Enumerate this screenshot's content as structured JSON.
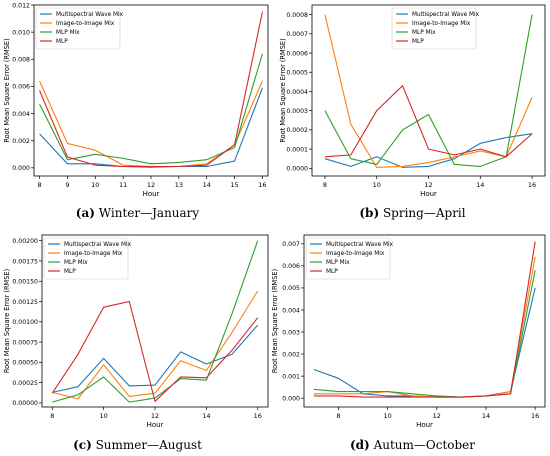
{
  "chart_data": [
    {
      "type": "line",
      "caption_letter": "(a)",
      "caption_text": "Winter—January",
      "xlabel": "Hour",
      "ylabel": "Root Mean Square Error (RMSE)",
      "xlim": [
        7.8,
        16.2
      ],
      "ylim": [
        -0.0006,
        0.012
      ],
      "xticks": [
        8,
        9,
        10,
        11,
        12,
        13,
        14,
        15,
        16
      ],
      "xtick_labels": [
        "8",
        "9",
        "10",
        "11",
        "12",
        "13",
        "14",
        "15",
        "16"
      ],
      "yticks": [
        0,
        0.002,
        0.004,
        0.006,
        0.008,
        0.01,
        0.012
      ],
      "ytick_labels": [
        "0.000",
        "0.002",
        "0.004",
        "0.006",
        "0.008",
        "0.010",
        "0.012"
      ],
      "legend": "top-left",
      "series": [
        {
          "name": "Multispectral Wave Mix",
          "color": "#1f77b4",
          "x": [
            8,
            9,
            10,
            11,
            12,
            13,
            14,
            15,
            16
          ],
          "values": [
            0.0025,
            0.0003,
            0.0003,
            0.0001,
            5e-05,
            0.0001,
            0.0001,
            0.0005,
            0.0059
          ]
        },
        {
          "name": "Image-to-Image Mix",
          "color": "#ff7f0e",
          "x": [
            8,
            9,
            10,
            11,
            12,
            13,
            14,
            15,
            16
          ],
          "values": [
            0.0064,
            0.0018,
            0.0013,
            0.0002,
            0.0001,
            0.0001,
            0.0003,
            0.0017,
            0.0064
          ]
        },
        {
          "name": "MLP Mix",
          "color": "#2ca02c",
          "x": [
            8,
            9,
            10,
            11,
            12,
            13,
            14,
            15,
            16
          ],
          "values": [
            0.0047,
            0.0006,
            0.001,
            0.0007,
            0.0003,
            0.0004,
            0.0006,
            0.0015,
            0.0084
          ]
        },
        {
          "name": "MLP",
          "color": "#d62728",
          "x": [
            8,
            9,
            10,
            11,
            12,
            13,
            14,
            15,
            16
          ],
          "values": [
            0.0057,
            0.0008,
            0.0002,
            0.0001,
            0.0001,
            0.0001,
            0.0002,
            0.0017,
            0.0115
          ]
        }
      ]
    },
    {
      "type": "line",
      "caption_letter": "(b)",
      "caption_text": "Spring—April",
      "xlabel": "Hour",
      "ylabel": "Root Mean Square Error (RMSE)",
      "xlim": [
        7.5,
        16.5
      ],
      "ylim": [
        -4e-05,
        0.00085
      ],
      "xticks": [
        8,
        10,
        12,
        14,
        16
      ],
      "xtick_labels": [
        "8",
        "10",
        "12",
        "14",
        "16"
      ],
      "yticks": [
        0,
        0.0001,
        0.0002,
        0.0003,
        0.0004,
        0.0005,
        0.0006,
        0.0007,
        0.0008
      ],
      "ytick_labels": [
        "0.0000",
        "0.0001",
        "0.0002",
        "0.0003",
        "0.0004",
        "0.0005",
        "0.0006",
        "0.0007",
        "0.0008"
      ],
      "legend": "top-right",
      "series": [
        {
          "name": "Multispectral Wave Mix",
          "color": "#1f77b4",
          "x": [
            8,
            9,
            10,
            11,
            12,
            13,
            14,
            15,
            16
          ],
          "values": [
            5e-05,
            1e-05,
            6e-05,
            5e-06,
            1e-05,
            5e-05,
            0.00013,
            0.00016,
            0.00018
          ]
        },
        {
          "name": "Image-to-Image Mix",
          "color": "#ff7f0e",
          "x": [
            8,
            9,
            10,
            11,
            12,
            13,
            14,
            15,
            16
          ],
          "values": [
            0.0008,
            0.00023,
            5e-06,
            1e-05,
            3e-05,
            6e-05,
            9e-05,
            6e-05,
            0.00037
          ]
        },
        {
          "name": "MLP Mix",
          "color": "#2ca02c",
          "x": [
            8,
            9,
            10,
            11,
            12,
            13,
            14,
            15,
            16
          ],
          "values": [
            0.0003,
            5e-05,
            2e-05,
            0.0002,
            0.00028,
            2e-05,
            1e-05,
            6e-05,
            0.0008
          ]
        },
        {
          "name": "MLP",
          "color": "#d62728",
          "x": [
            8,
            9,
            10,
            11,
            12,
            13,
            14,
            15,
            16
          ],
          "values": [
            6e-05,
            7e-05,
            0.0003,
            0.00043,
            0.0001,
            7e-05,
            0.0001,
            6e-05,
            0.00018
          ]
        }
      ]
    },
    {
      "type": "line",
      "caption_letter": "(c)",
      "caption_text": "Summer—August",
      "xlabel": "Hour",
      "ylabel": "Root Mean Square Error (RMSE)",
      "xlim": [
        7.6,
        16.4
      ],
      "ylim": [
        -5e-05,
        0.00207
      ],
      "xticks": [
        8,
        10,
        12,
        14,
        16
      ],
      "xtick_labels": [
        "8",
        "10",
        "12",
        "14",
        "16"
      ],
      "yticks": [
        0,
        0.00025,
        0.0005,
        0.00075,
        0.001,
        0.00125,
        0.0015,
        0.00175,
        0.002
      ],
      "ytick_labels": [
        "0.00000",
        "0.00025",
        "0.00050",
        "0.00075",
        "0.00100",
        "0.00125",
        "0.00150",
        "0.00175",
        "0.00200"
      ],
      "legend": "top-left",
      "series": [
        {
          "name": "Multispectral Wave Mix",
          "color": "#1f77b4",
          "x": [
            8,
            9,
            10,
            11,
            12,
            13,
            14,
            15,
            16
          ],
          "values": [
            0.00013,
            0.0002,
            0.00055,
            0.00021,
            0.00022,
            0.00063,
            0.00048,
            0.0006,
            0.00096
          ]
        },
        {
          "name": "Image-to-Image Mix",
          "color": "#ff7f0e",
          "x": [
            8,
            9,
            10,
            11,
            12,
            13,
            14,
            15,
            16
          ],
          "values": [
            0.00013,
            5e-05,
            0.00047,
            8e-05,
            0.00012,
            0.00052,
            0.0004,
            0.00087,
            0.00138
          ]
        },
        {
          "name": "MLP Mix",
          "color": "#2ca02c",
          "x": [
            8,
            9,
            10,
            11,
            12,
            13,
            14,
            15,
            16
          ],
          "values": [
            1e-05,
            0.0001,
            0.00032,
            1e-05,
            6e-05,
            0.0003,
            0.00028,
            0.0011,
            0.002
          ]
        },
        {
          "name": "MLP",
          "color": "#d62728",
          "x": [
            8,
            9,
            10,
            11,
            12,
            13,
            14,
            15,
            16
          ],
          "values": [
            0.00012,
            0.0006,
            0.00118,
            0.00125,
            2e-05,
            0.00032,
            0.00031,
            0.00065,
            0.00105
          ]
        }
      ]
    },
    {
      "type": "line",
      "caption_letter": "(d)",
      "caption_text": "Autum—October",
      "xlabel": "Hour",
      "ylabel": "Root Mean Square Error (RMSE)",
      "xlim": [
        6.6,
        16.4
      ],
      "ylim": [
        -0.0004,
        0.0074
      ],
      "xticks": [
        8,
        10,
        12,
        14,
        16
      ],
      "xtick_labels": [
        "8",
        "10",
        "12",
        "14",
        "16"
      ],
      "yticks": [
        0,
        0.001,
        0.002,
        0.003,
        0.004,
        0.005,
        0.006,
        0.007
      ],
      "ytick_labels": [
        "0.000",
        "0.001",
        "0.002",
        "0.003",
        "0.004",
        "0.005",
        "0.006",
        "0.007"
      ],
      "legend": "top-left",
      "series": [
        {
          "name": "Multispectral Wave Mix",
          "color": "#1f77b4",
          "x": [
            7,
            8,
            9,
            10,
            11,
            12,
            13,
            14,
            15,
            16
          ],
          "values": [
            0.0013,
            0.0009,
            0.0002,
            0.0001,
            0.0001,
            5e-05,
            5e-05,
            0.0001,
            0.0003,
            0.005
          ]
        },
        {
          "name": "Image-to-Image Mix",
          "color": "#ff7f0e",
          "x": [
            7,
            8,
            9,
            10,
            11,
            12,
            13,
            14,
            15,
            16
          ],
          "values": [
            0.0002,
            0.0002,
            0.0002,
            0.0003,
            0.0001,
            5e-05,
            5e-05,
            0.0001,
            0.0003,
            0.0064
          ]
        },
        {
          "name": "MLP Mix",
          "color": "#2ca02c",
          "x": [
            7,
            8,
            9,
            10,
            11,
            12,
            13,
            14,
            15,
            16
          ],
          "values": [
            0.0004,
            0.0003,
            0.0003,
            0.0003,
            0.0002,
            0.0001,
            5e-05,
            0.0001,
            0.0002,
            0.0058
          ]
        },
        {
          "name": "MLP",
          "color": "#d62728",
          "x": [
            7,
            8,
            9,
            10,
            11,
            12,
            13,
            14,
            15,
            16
          ],
          "values": [
            0.0001,
            0.0001,
            5e-05,
            5e-05,
            5e-05,
            5e-05,
            5e-05,
            0.0001,
            0.0002,
            0.0071
          ]
        }
      ]
    }
  ]
}
